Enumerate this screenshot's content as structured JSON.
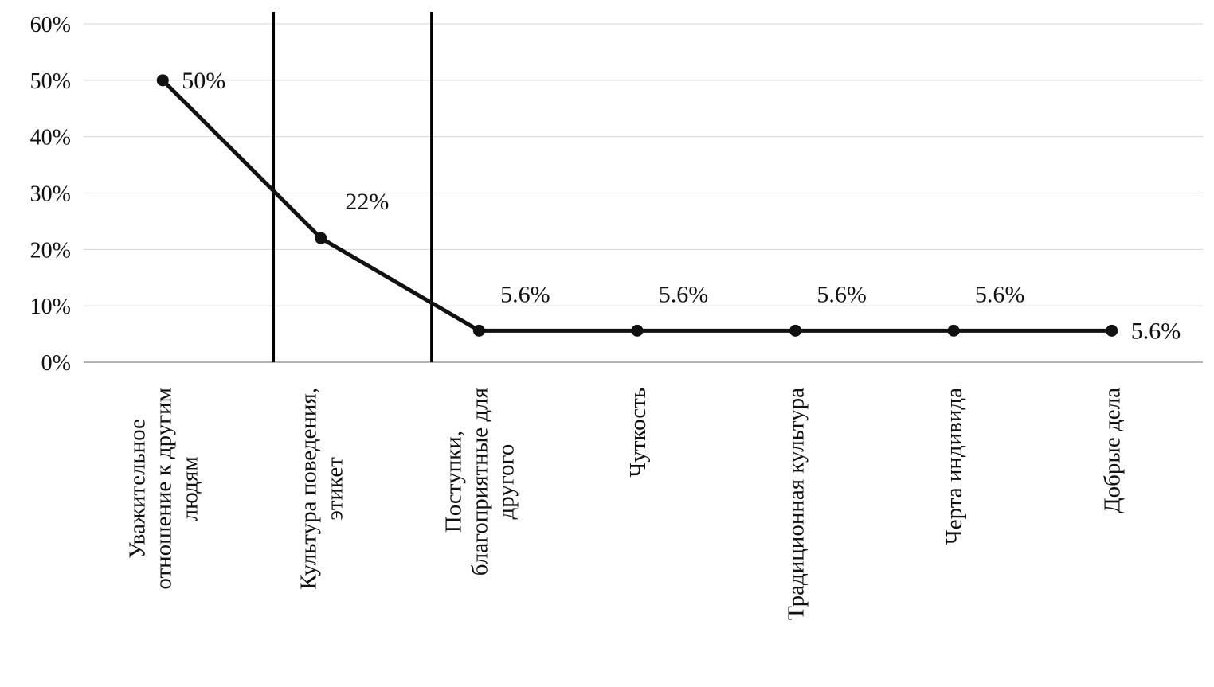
{
  "chart_data": {
    "type": "line",
    "title": "",
    "xlabel": "",
    "ylabel": "",
    "categories": [
      "Уважительное отношение к другим людям",
      "Культура поведения, этикет",
      "Поступки, благоприятные для другого",
      "Чуткость",
      "Традиционная культура",
      "Черта индивида",
      "Добрые дела"
    ],
    "category_lines": [
      [
        "Уважительное",
        "отношение к другим",
        "людям"
      ],
      [
        "Культура поведения,",
        "этикет"
      ],
      [
        "Поступки,",
        "благоприятные для",
        "другого"
      ],
      [
        "Чуткость"
      ],
      [
        "Традиционная культура"
      ],
      [
        "Черта индивида"
      ],
      [
        "Добрые дела"
      ]
    ],
    "values": [
      50,
      22,
      5.6,
      5.6,
      5.6,
      5.6,
      5.6
    ],
    "point_labels": [
      "50%",
      "22%",
      "5.6%",
      "5.6%",
      "5.6%",
      "5.6%",
      "5.6%"
    ],
    "label_positions": [
      "right",
      "above",
      "above",
      "above",
      "above",
      "above",
      "right"
    ],
    "ylim": [
      0,
      60
    ],
    "y_ticks": [
      0,
      10,
      20,
      30,
      40,
      50,
      60
    ],
    "y_tick_labels": [
      "0%",
      "10%",
      "20%",
      "30%",
      "40%",
      "50%",
      "60%"
    ],
    "separators_band_pos": [
      1.2,
      2.2
    ],
    "grid": "horizontal",
    "legend": "none",
    "colors": {
      "line": "#111111",
      "marker": "#111111",
      "grid": "#d6d6d6",
      "axis": "#9a9a9a",
      "separator": "#000000",
      "text": "#111111"
    }
  }
}
